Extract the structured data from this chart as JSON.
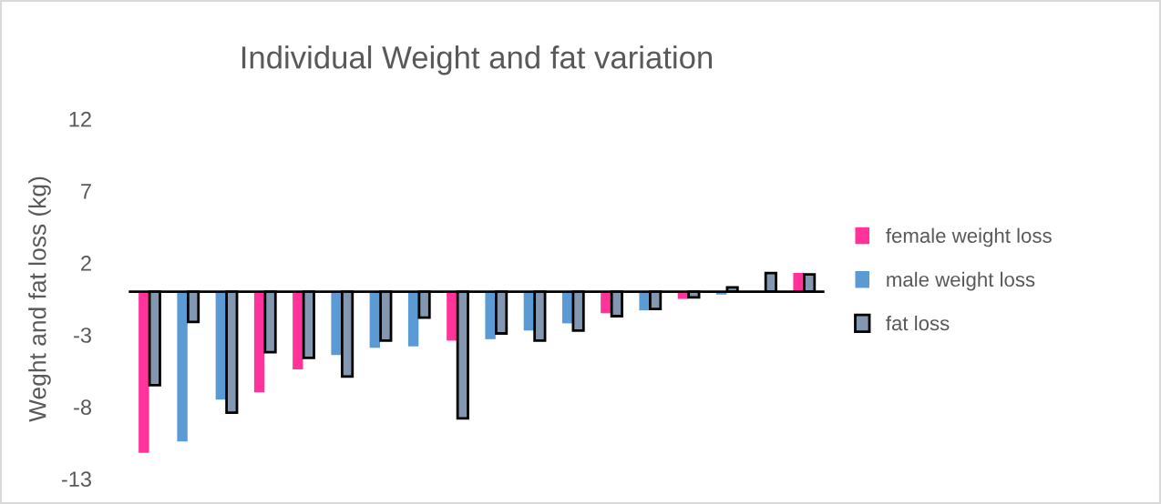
{
  "chart_data": {
    "type": "bar",
    "title": "Individual Weight and fat variation",
    "ylabel": "Weght and fat loss (kg)",
    "categories": [
      null,
      null,
      null,
      null,
      null,
      null,
      null,
      null,
      null,
      null,
      null,
      null,
      null,
      null,
      null,
      null,
      null,
      null
    ],
    "series": [
      {
        "name": "female weight loss",
        "color": "#ff3399",
        "values": [
          -11.2,
          null,
          null,
          -7.0,
          -5.4,
          null,
          null,
          null,
          -3.4,
          null,
          null,
          null,
          -1.5,
          null,
          -0.5,
          null,
          null,
          1.3
        ]
      },
      {
        "name": "male weight loss",
        "color": "#5b9bd5",
        "values": [
          null,
          -10.4,
          -7.5,
          null,
          null,
          -4.4,
          -3.9,
          -3.8,
          null,
          -3.3,
          -2.7,
          -2.2,
          null,
          -1.3,
          null,
          -0.2,
          null,
          null
        ]
      },
      {
        "name": "fat loss",
        "color": "#8497b0",
        "values": [
          -6.5,
          -2.1,
          -8.4,
          -4.2,
          -4.6,
          -5.9,
          -3.4,
          -1.8,
          -8.8,
          -2.9,
          -3.4,
          -2.7,
          -1.7,
          -1.2,
          -0.4,
          0.3,
          1.3,
          1.2
        ]
      }
    ],
    "ylim": [
      -13,
      12
    ],
    "yticks": [
      -13,
      -8,
      -3,
      2,
      7,
      12
    ],
    "grid": false,
    "legend": "right"
  }
}
